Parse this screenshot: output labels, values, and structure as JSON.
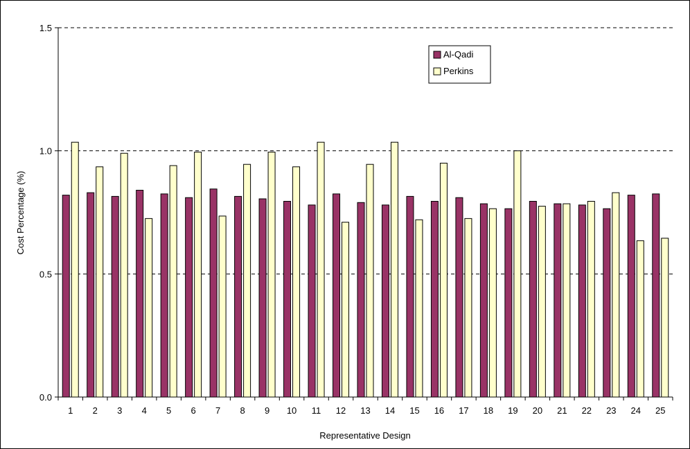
{
  "chart_data": {
    "type": "bar",
    "title": "",
    "xlabel": "Representative Design",
    "ylabel": "Cost Percentage (%)",
    "ylim": [
      0,
      1.5
    ],
    "yticks": [
      0.0,
      0.5,
      1.0,
      1.5
    ],
    "ytick_labels": [
      "0.0",
      "0.5",
      "1.0",
      "1.5"
    ],
    "grid": "dashed horizontal at major ticks",
    "legend_position": "top-right",
    "categories": [
      "1",
      "2",
      "3",
      "4",
      "5",
      "6",
      "7",
      "8",
      "9",
      "10",
      "11",
      "12",
      "13",
      "14",
      "15",
      "16",
      "17",
      "18",
      "19",
      "20",
      "21",
      "22",
      "23",
      "24",
      "25"
    ],
    "series": [
      {
        "name": "Al-Qadi",
        "color": "#993366",
        "values": [
          0.82,
          0.83,
          0.815,
          0.84,
          0.825,
          0.81,
          0.845,
          0.815,
          0.805,
          0.795,
          0.78,
          0.825,
          0.79,
          0.78,
          0.815,
          0.795,
          0.81,
          0.785,
          0.765,
          0.795,
          0.785,
          0.78,
          0.765,
          0.82,
          0.825
        ]
      },
      {
        "name": "Perkins",
        "color": "#FFFFCC",
        "values": [
          1.035,
          0.935,
          0.99,
          0.725,
          0.94,
          0.995,
          0.735,
          0.945,
          0.995,
          0.935,
          1.035,
          0.71,
          0.945,
          1.035,
          0.72,
          0.95,
          0.725,
          0.765,
          1.0,
          0.775,
          0.785,
          0.795,
          0.83,
          0.635,
          0.645
        ]
      }
    ]
  }
}
